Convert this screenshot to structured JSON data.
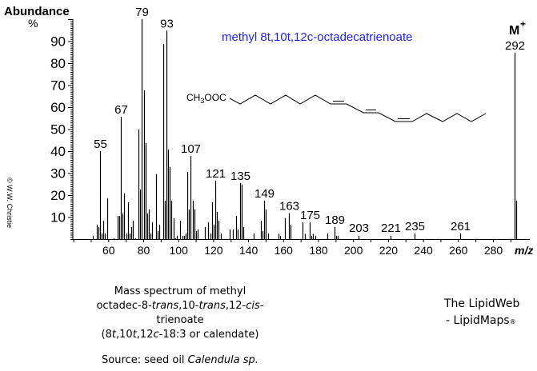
{
  "chart_data": {
    "type": "bar",
    "title": "methyl 8t,10t,12c-octadecatrienoate",
    "title_color": "#2020ff",
    "ylabel": "Abundance",
    "ylabel_unit": "%",
    "xlabel": "m/z",
    "xlim": [
      0,
      300
    ],
    "ylim": [
      0,
      100
    ],
    "yticks": [
      10,
      20,
      30,
      40,
      50,
      60,
      70,
      80,
      90
    ],
    "xticks": [
      60,
      80,
      100,
      120,
      140,
      160,
      180,
      200,
      220,
      240,
      260,
      280
    ],
    "grid": false,
    "molecular_ion_label": "M",
    "molecular_ion_sup": "+",
    "peaks": [
      {
        "mz": 51,
        "abundance": 1.5
      },
      {
        "mz": 53,
        "abundance": 6.5
      },
      {
        "mz": 54,
        "abundance": 5.5
      },
      {
        "mz": 55,
        "abundance": 40,
        "label": "55"
      },
      {
        "mz": 56,
        "abundance": 2.5
      },
      {
        "mz": 57,
        "abundance": 8.4
      },
      {
        "mz": 58,
        "abundance": 2.5
      },
      {
        "mz": 59,
        "abundance": 18.5
      },
      {
        "mz": 63,
        "abundance": 0.4
      },
      {
        "mz": 65,
        "abundance": 10.5
      },
      {
        "mz": 66,
        "abundance": 10.5
      },
      {
        "mz": 67,
        "abundance": 55.6,
        "label": "67"
      },
      {
        "mz": 68,
        "abundance": 11.6
      },
      {
        "mz": 69,
        "abundance": 20.8
      },
      {
        "mz": 70,
        "abundance": 2.5
      },
      {
        "mz": 71,
        "abundance": 16.7
      },
      {
        "mz": 72,
        "abundance": 2.5
      },
      {
        "mz": 73,
        "abundance": 5.5
      },
      {
        "mz": 74,
        "abundance": 8.4
      },
      {
        "mz": 75,
        "abundance": 0.4
      },
      {
        "mz": 77,
        "abundance": 49.8
      },
      {
        "mz": 78,
        "abundance": 22.5
      },
      {
        "mz": 79,
        "abundance": 100,
        "label": "79"
      },
      {
        "mz": 80,
        "abundance": 67.6
      },
      {
        "mz": 81,
        "abundance": 43.6
      },
      {
        "mz": 82,
        "abundance": 11.6
      },
      {
        "mz": 83,
        "abundance": 13.5
      },
      {
        "mz": 84,
        "abundance": 2.5
      },
      {
        "mz": 85,
        "abundance": 7.6
      },
      {
        "mz": 87,
        "abundance": 29.5
      },
      {
        "mz": 88,
        "abundance": 3.6
      },
      {
        "mz": 89,
        "abundance": 6.5
      },
      {
        "mz": 91,
        "abundance": 88.7
      },
      {
        "mz": 92,
        "abundance": 17.5
      },
      {
        "mz": 93,
        "abundance": 94.8,
        "label": "93"
      },
      {
        "mz": 94,
        "abundance": 40.7
      },
      {
        "mz": 95,
        "abundance": 32.7
      },
      {
        "mz": 96,
        "abundance": 17.5
      },
      {
        "mz": 97,
        "abundance": 9.5
      },
      {
        "mz": 98,
        "abundance": 0.4
      },
      {
        "mz": 99,
        "abundance": 1.5
      },
      {
        "mz": 101,
        "abundance": 8.4
      },
      {
        "mz": 102,
        "abundance": 1.5
      },
      {
        "mz": 103,
        "abundance": 1.5
      },
      {
        "mz": 104,
        "abundance": 2.5
      },
      {
        "mz": 105,
        "abundance": 30.5
      },
      {
        "mz": 106,
        "abundance": 13.5
      },
      {
        "mz": 107,
        "abundance": 37.8,
        "label": "107"
      },
      {
        "mz": 108,
        "abundance": 17.5
      },
      {
        "mz": 109,
        "abundance": 13.5
      },
      {
        "mz": 110,
        "abundance": 3.6
      },
      {
        "mz": 111,
        "abundance": 4.4
      },
      {
        "mz": 115,
        "abundance": 5.5
      },
      {
        "mz": 117,
        "abundance": 7.6
      },
      {
        "mz": 118,
        "abundance": 2.5
      },
      {
        "mz": 119,
        "abundance": 16.7
      },
      {
        "mz": 120,
        "abundance": 6.5
      },
      {
        "mz": 121,
        "abundance": 26.5,
        "label": "121"
      },
      {
        "mz": 122,
        "abundance": 12.4
      },
      {
        "mz": 123,
        "abundance": 8.4
      },
      {
        "mz": 124,
        "abundance": 2.5
      },
      {
        "mz": 129,
        "abundance": 4.4
      },
      {
        "mz": 131,
        "abundance": 4.4
      },
      {
        "mz": 133,
        "abundance": 10.5
      },
      {
        "mz": 134,
        "abundance": 4.4
      },
      {
        "mz": 135,
        "abundance": 25.5,
        "label": "135"
      },
      {
        "mz": 136,
        "abundance": 24.8
      },
      {
        "mz": 137,
        "abundance": 5.5
      },
      {
        "mz": 143,
        "abundance": 2.5
      },
      {
        "mz": 147,
        "abundance": 8.4
      },
      {
        "mz": 148,
        "abundance": 3.6
      },
      {
        "mz": 149,
        "abundance": 17.5,
        "label": "149"
      },
      {
        "mz": 150,
        "abundance": 13.5
      },
      {
        "mz": 151,
        "abundance": 2.5
      },
      {
        "mz": 157,
        "abundance": 2.4
      },
      {
        "mz": 158,
        "abundance": 1.5
      },
      {
        "mz": 161,
        "abundance": 9.6
      },
      {
        "mz": 163,
        "abundance": 11.8,
        "label": "163"
      },
      {
        "mz": 164,
        "abundance": 6.5
      },
      {
        "mz": 171,
        "abundance": 7.6
      },
      {
        "mz": 172,
        "abundance": 2.4
      },
      {
        "mz": 175,
        "abundance": 7.6,
        "label": "175"
      },
      {
        "mz": 176,
        "abundance": 1.5
      },
      {
        "mz": 177,
        "abundance": 2.4
      },
      {
        "mz": 178,
        "abundance": 1.5
      },
      {
        "mz": 185,
        "abundance": 2.5
      },
      {
        "mz": 189,
        "abundance": 5.5,
        "label": "189"
      },
      {
        "mz": 190,
        "abundance": 1.5
      },
      {
        "mz": 191,
        "abundance": 1.5
      },
      {
        "mz": 203,
        "abundance": 1.5,
        "label": "203"
      },
      {
        "mz": 221,
        "abundance": 1.5,
        "label": "221"
      },
      {
        "mz": 235,
        "abundance": 2.5,
        "label": "235"
      },
      {
        "mz": 261,
        "abundance": 2.5,
        "label": "261"
      },
      {
        "mz": 292,
        "abundance": 84.7,
        "label": "292"
      },
      {
        "mz": 293,
        "abundance": 17.5
      }
    ]
  },
  "structure": {
    "head_label": "CH3OOC",
    "head_main": "CH",
    "head_sub": "3",
    "head_rest": "OOC"
  },
  "copyright": "© W.W. Christie",
  "caption": {
    "line1": [
      {
        "text": "Mass spectrum of methyl",
        "italic": false
      }
    ],
    "line2": [
      {
        "text": "octadec-8-",
        "italic": false
      },
      {
        "text": "trans",
        "italic": true
      },
      {
        "text": ",10-",
        "italic": false
      },
      {
        "text": "trans",
        "italic": true
      },
      {
        "text": ",12-",
        "italic": false
      },
      {
        "text": "cis",
        "italic": true
      },
      {
        "text": "-trienoate",
        "italic": false
      }
    ],
    "line3": [
      {
        "text": "(8",
        "italic": false
      },
      {
        "text": "t",
        "italic": true
      },
      {
        "text": ",10",
        "italic": false
      },
      {
        "text": "t",
        "italic": true
      },
      {
        "text": ",12",
        "italic": false
      },
      {
        "text": "c",
        "italic": true
      },
      {
        "text": "-18:3 or calendate)",
        "italic": false
      }
    ],
    "line4": [
      {
        "text": "Source:  seed oil ",
        "italic": false
      },
      {
        "text": "Calendula sp.",
        "italic": true
      }
    ]
  },
  "brand": {
    "line1": "The LipidWeb",
    "line2": "- LipidMaps",
    "mark": "®"
  }
}
